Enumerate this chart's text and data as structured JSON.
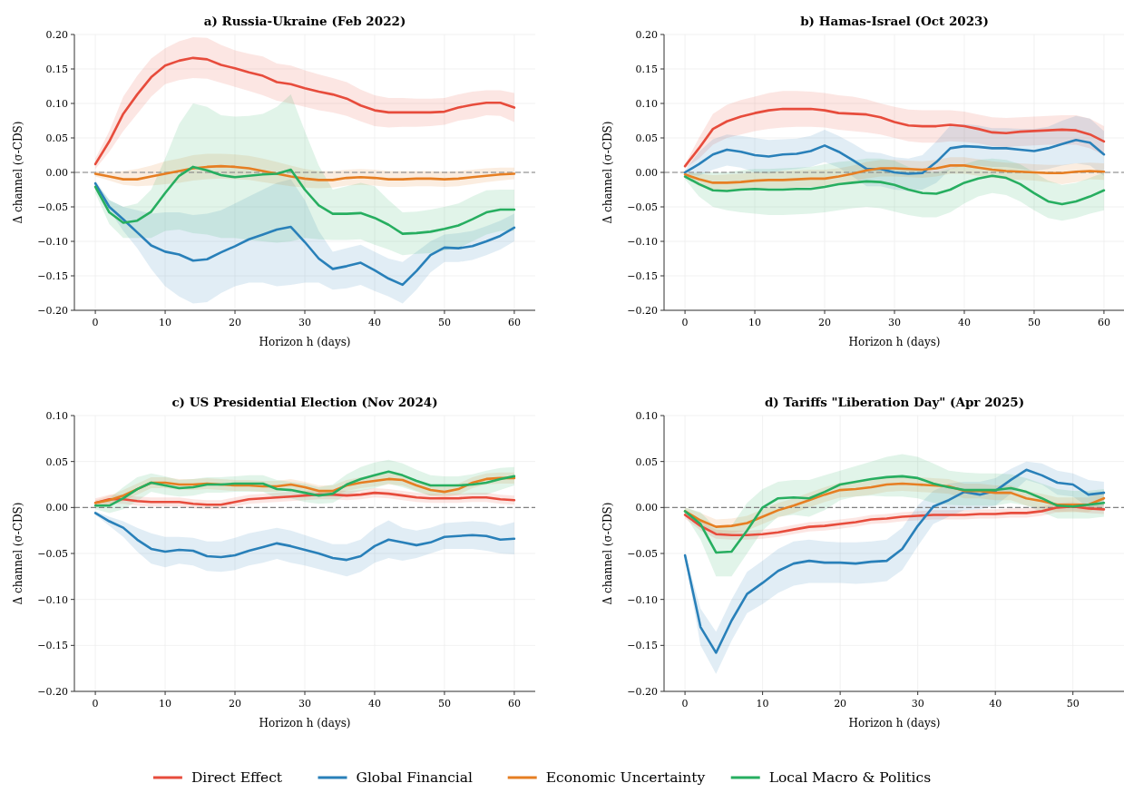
{
  "chart_data": [
    {
      "type": "line",
      "title": "a) Russia-Ukraine (Feb 2022)",
      "xlabel": "Horizon h (days)",
      "ylabel": "Δ channel (σ-CDS)",
      "xlim": [
        -3,
        63
      ],
      "xticks": [
        0,
        10,
        20,
        30,
        40,
        50,
        60
      ],
      "ylim": [
        -0.2,
        0.2
      ],
      "yticks": [
        {
          "value": -0.2,
          "label": "−0.20"
        },
        {
          "value": -0.15,
          "label": "−0.15"
        },
        {
          "value": -0.1,
          "label": "−0.10"
        },
        {
          "value": -0.05,
          "label": "−0.05"
        },
        {
          "value": 0,
          "label": "0.00"
        },
        {
          "value": 0.05,
          "label": "0.05"
        },
        {
          "value": 0.1,
          "label": "0.10"
        },
        {
          "value": 0.15,
          "label": "0.15"
        },
        {
          "value": 0.2,
          "label": "0.20"
        }
      ],
      "grid": true,
      "legend": "bottom",
      "ref_lines": [
        {
          "axis": "y",
          "value": 0,
          "color": "#808080",
          "line_style": "dashed"
        }
      ],
      "x": [
        0,
        2,
        4,
        6,
        8,
        10,
        12,
        14,
        16,
        18,
        20,
        22,
        24,
        26,
        28,
        30,
        32,
        34,
        36,
        38,
        40,
        42,
        44,
        46,
        48,
        50,
        52,
        54,
        56,
        58,
        60
      ],
      "series": [
        {
          "name": "Direct Effect",
          "color": "#e74c3c",
          "values": [
            0.012,
            0.045,
            0.085,
            0.113,
            0.138,
            0.155,
            0.162,
            0.166,
            0.164,
            0.156,
            0.151,
            0.145,
            0.14,
            0.131,
            0.128,
            0.122,
            0.117,
            0.113,
            0.107,
            0.097,
            0.09,
            0.087,
            0.087,
            0.087,
            0.087,
            0.088,
            0.094,
            0.098,
            0.101,
            0.101,
            0.094
          ],
          "upper": [
            0.02,
            0.06,
            0.11,
            0.14,
            0.165,
            0.18,
            0.19,
            0.196,
            0.195,
            0.185,
            0.177,
            0.172,
            0.168,
            0.158,
            0.155,
            0.148,
            0.142,
            0.137,
            0.131,
            0.12,
            0.112,
            0.108,
            0.108,
            0.107,
            0.107,
            0.108,
            0.113,
            0.117,
            0.119,
            0.119,
            0.115
          ],
          "lower": [
            0.005,
            0.03,
            0.06,
            0.085,
            0.11,
            0.128,
            0.134,
            0.137,
            0.136,
            0.13,
            0.124,
            0.118,
            0.112,
            0.104,
            0.1,
            0.095,
            0.09,
            0.087,
            0.082,
            0.074,
            0.067,
            0.065,
            0.066,
            0.066,
            0.067,
            0.069,
            0.075,
            0.078,
            0.083,
            0.082,
            0.073
          ]
        },
        {
          "name": "Global Financial",
          "color": "#2980b9",
          "values": [
            -0.016,
            -0.05,
            -0.068,
            -0.087,
            -0.106,
            -0.115,
            -0.119,
            -0.128,
            -0.126,
            -0.116,
            -0.107,
            -0.097,
            -0.09,
            -0.083,
            -0.079,
            -0.101,
            -0.125,
            -0.14,
            -0.136,
            -0.131,
            -0.142,
            -0.154,
            -0.163,
            -0.143,
            -0.12,
            -0.109,
            -0.11,
            -0.107,
            -0.1,
            -0.092,
            -0.08
          ],
          "upper": [
            -0.012,
            -0.04,
            -0.05,
            -0.055,
            -0.06,
            -0.058,
            -0.058,
            -0.062,
            -0.06,
            -0.055,
            -0.045,
            -0.035,
            -0.025,
            -0.015,
            -0.01,
            -0.04,
            -0.085,
            -0.115,
            -0.11,
            -0.105,
            -0.115,
            -0.125,
            -0.13,
            -0.115,
            -0.1,
            -0.09,
            -0.088,
            -0.085,
            -0.078,
            -0.07,
            -0.06
          ],
          "lower": [
            -0.02,
            -0.055,
            -0.085,
            -0.11,
            -0.14,
            -0.165,
            -0.18,
            -0.19,
            -0.188,
            -0.175,
            -0.165,
            -0.16,
            -0.16,
            -0.165,
            -0.163,
            -0.16,
            -0.16,
            -0.17,
            -0.168,
            -0.163,
            -0.172,
            -0.18,
            -0.19,
            -0.17,
            -0.145,
            -0.13,
            -0.13,
            -0.127,
            -0.12,
            -0.112,
            -0.1
          ]
        },
        {
          "name": "Economic Uncertainty",
          "color": "#e67e22",
          "values": [
            -0.002,
            -0.006,
            -0.01,
            -0.01,
            -0.006,
            -0.002,
            0.002,
            0.006,
            0.008,
            0.009,
            0.008,
            0.006,
            0.002,
            -0.002,
            -0.006,
            -0.009,
            -0.011,
            -0.011,
            -0.008,
            -0.007,
            -0.008,
            -0.01,
            -0.01,
            -0.009,
            -0.009,
            -0.01,
            -0.009,
            -0.007,
            -0.005,
            -0.003,
            -0.002
          ],
          "upper": [
            0.002,
            0.0,
            0.002,
            0.005,
            0.01,
            0.016,
            0.02,
            0.025,
            0.027,
            0.027,
            0.026,
            0.024,
            0.02,
            0.015,
            0.01,
            0.005,
            0.002,
            0.002,
            0.004,
            0.005,
            0.004,
            0.002,
            0.002,
            0.002,
            0.002,
            0.001,
            0.002,
            0.004,
            0.006,
            0.007,
            0.007
          ],
          "lower": [
            -0.006,
            -0.012,
            -0.018,
            -0.02,
            -0.019,
            -0.017,
            -0.015,
            -0.012,
            -0.01,
            -0.009,
            -0.01,
            -0.011,
            -0.014,
            -0.017,
            -0.02,
            -0.022,
            -0.023,
            -0.022,
            -0.019,
            -0.018,
            -0.019,
            -0.021,
            -0.021,
            -0.02,
            -0.02,
            -0.021,
            -0.02,
            -0.017,
            -0.014,
            -0.012,
            -0.01
          ]
        },
        {
          "name": "Local Macro & Politics",
          "color": "#27ae60",
          "values": [
            -0.021,
            -0.058,
            -0.073,
            -0.07,
            -0.057,
            -0.03,
            -0.005,
            0.008,
            0.003,
            -0.004,
            -0.007,
            -0.005,
            -0.003,
            -0.002,
            0.004,
            -0.025,
            -0.048,
            -0.06,
            -0.06,
            -0.059,
            -0.066,
            -0.076,
            -0.089,
            -0.088,
            -0.086,
            -0.082,
            -0.077,
            -0.068,
            -0.058,
            -0.054,
            -0.054
          ],
          "upper": [
            -0.015,
            -0.04,
            -0.05,
            -0.045,
            -0.025,
            0.02,
            0.07,
            0.1,
            0.095,
            0.083,
            0.081,
            0.082,
            0.085,
            0.095,
            0.113,
            0.06,
            0.01,
            -0.025,
            -0.02,
            -0.015,
            -0.02,
            -0.04,
            -0.058,
            -0.057,
            -0.054,
            -0.05,
            -0.045,
            -0.035,
            -0.026,
            -0.025,
            -0.025
          ],
          "lower": [
            -0.03,
            -0.075,
            -0.095,
            -0.095,
            -0.095,
            -0.085,
            -0.083,
            -0.088,
            -0.09,
            -0.095,
            -0.095,
            -0.098,
            -0.1,
            -0.102,
            -0.1,
            -0.095,
            -0.097,
            -0.098,
            -0.098,
            -0.097,
            -0.105,
            -0.112,
            -0.12,
            -0.118,
            -0.117,
            -0.113,
            -0.11,
            -0.1,
            -0.09,
            -0.085,
            -0.085
          ]
        }
      ]
    },
    {
      "type": "line",
      "title": "b) Hamas-Israel (Oct 2023)",
      "xlabel": "Horizon h (days)",
      "ylabel": "Δ channel (σ-CDS)",
      "xlim": [
        -3,
        63
      ],
      "xticks": [
        0,
        10,
        20,
        30,
        40,
        50,
        60
      ],
      "ylim": [
        -0.2,
        0.2
      ],
      "yticks": [
        {
          "value": -0.2,
          "label": "−0.20"
        },
        {
          "value": -0.15,
          "label": "−0.15"
        },
        {
          "value": -0.1,
          "label": "−0.10"
        },
        {
          "value": -0.05,
          "label": "−0.05"
        },
        {
          "value": 0,
          "label": "0.00"
        },
        {
          "value": 0.05,
          "label": "0.05"
        },
        {
          "value": 0.1,
          "label": "0.10"
        },
        {
          "value": 0.15,
          "label": "0.15"
        },
        {
          "value": 0.2,
          "label": "0.20"
        }
      ],
      "grid": true,
      "ref_lines": [
        {
          "axis": "y",
          "value": 0,
          "color": "#808080",
          "line_style": "dashed"
        }
      ],
      "x": [
        0,
        2,
        4,
        6,
        8,
        10,
        12,
        14,
        16,
        18,
        20,
        22,
        24,
        26,
        28,
        30,
        32,
        34,
        36,
        38,
        40,
        42,
        44,
        46,
        48,
        50,
        52,
        54,
        56,
        58,
        60
      ],
      "series": [
        {
          "color": "#e74c3c",
          "values": [
            0.009,
            0.035,
            0.063,
            0.074,
            0.081,
            0.086,
            0.09,
            0.092,
            0.092,
            0.092,
            0.09,
            0.086,
            0.085,
            0.084,
            0.08,
            0.073,
            0.068,
            0.067,
            0.067,
            0.069,
            0.067,
            0.063,
            0.058,
            0.057,
            0.059,
            0.06,
            0.061,
            0.062,
            0.061,
            0.055,
            0.045
          ],
          "upper": [
            0.012,
            0.05,
            0.085,
            0.098,
            0.105,
            0.11,
            0.115,
            0.118,
            0.118,
            0.117,
            0.115,
            0.112,
            0.11,
            0.106,
            0.1,
            0.095,
            0.091,
            0.09,
            0.09,
            0.09,
            0.088,
            0.084,
            0.08,
            0.079,
            0.08,
            0.081,
            0.082,
            0.083,
            0.083,
            0.078,
            0.067
          ],
          "lower": [
            0.006,
            0.02,
            0.04,
            0.05,
            0.055,
            0.06,
            0.063,
            0.065,
            0.066,
            0.066,
            0.065,
            0.062,
            0.06,
            0.058,
            0.055,
            0.05,
            0.045,
            0.043,
            0.043,
            0.045,
            0.044,
            0.042,
            0.038,
            0.037,
            0.038,
            0.039,
            0.04,
            0.04,
            0.04,
            0.035,
            0.025
          ]
        },
        {
          "color": "#2980b9",
          "values": [
            0.0,
            0.012,
            0.026,
            0.033,
            0.03,
            0.025,
            0.023,
            0.026,
            0.027,
            0.031,
            0.039,
            0.03,
            0.018,
            0.005,
            0.005,
            0.0,
            -0.002,
            -0.001,
            0.015,
            0.035,
            0.038,
            0.037,
            0.035,
            0.035,
            0.033,
            0.031,
            0.035,
            0.041,
            0.047,
            0.043,
            0.026
          ],
          "upper": [
            0.003,
            0.03,
            0.048,
            0.055,
            0.053,
            0.05,
            0.047,
            0.048,
            0.049,
            0.053,
            0.062,
            0.053,
            0.042,
            0.03,
            0.028,
            0.022,
            0.02,
            0.025,
            0.045,
            0.068,
            0.07,
            0.068,
            0.064,
            0.064,
            0.063,
            0.063,
            0.066,
            0.075,
            0.082,
            0.078,
            0.06
          ],
          "lower": [
            -0.003,
            -0.005,
            0.004,
            0.01,
            0.007,
            0.0,
            -0.002,
            0.003,
            0.005,
            0.008,
            0.015,
            0.007,
            -0.006,
            -0.02,
            -0.02,
            -0.025,
            -0.027,
            -0.025,
            -0.015,
            0.005,
            0.01,
            0.01,
            0.008,
            0.008,
            0.005,
            0.002,
            0.005,
            0.01,
            0.013,
            0.01,
            -0.005
          ]
        },
        {
          "color": "#e67e22",
          "values": [
            -0.003,
            -0.01,
            -0.015,
            -0.015,
            -0.014,
            -0.012,
            -0.011,
            -0.011,
            -0.01,
            -0.009,
            -0.009,
            -0.006,
            -0.002,
            0.003,
            0.006,
            0.006,
            0.005,
            0.004,
            0.006,
            0.01,
            0.01,
            0.007,
            0.004,
            0.002,
            0.001,
            0.0,
            -0.001,
            -0.001,
            0.001,
            0.002,
            0.001
          ],
          "upper": [
            0.0,
            -0.002,
            -0.004,
            -0.003,
            -0.002,
            0.0,
            0.001,
            0.002,
            0.003,
            0.004,
            0.004,
            0.006,
            0.01,
            0.015,
            0.018,
            0.018,
            0.017,
            0.016,
            0.018,
            0.022,
            0.022,
            0.019,
            0.016,
            0.014,
            0.013,
            0.012,
            0.011,
            0.011,
            0.013,
            0.014,
            0.013
          ],
          "lower": [
            -0.006,
            -0.02,
            -0.026,
            -0.027,
            -0.026,
            -0.024,
            -0.023,
            -0.023,
            -0.022,
            -0.021,
            -0.021,
            -0.018,
            -0.014,
            -0.009,
            -0.006,
            -0.006,
            -0.007,
            -0.008,
            -0.006,
            -0.002,
            -0.002,
            -0.005,
            -0.008,
            -0.01,
            -0.011,
            -0.012,
            -0.014,
            -0.017,
            -0.014,
            -0.01,
            -0.011
          ]
        },
        {
          "color": "#27ae60",
          "values": [
            -0.006,
            -0.017,
            -0.026,
            -0.027,
            -0.025,
            -0.024,
            -0.025,
            -0.025,
            -0.024,
            -0.024,
            -0.021,
            -0.017,
            -0.015,
            -0.013,
            -0.014,
            -0.018,
            -0.025,
            -0.03,
            -0.031,
            -0.025,
            -0.015,
            -0.009,
            -0.005,
            -0.008,
            -0.017,
            -0.03,
            -0.042,
            -0.046,
            -0.042,
            -0.035,
            -0.026
          ],
          "upper": [
            -0.002,
            0.0,
            0.0,
            0.0,
            0.003,
            0.005,
            0.005,
            0.006,
            0.007,
            0.008,
            0.012,
            0.015,
            0.017,
            0.02,
            0.02,
            0.017,
            0.008,
            0.002,
            0.0,
            0.005,
            0.012,
            0.018,
            0.02,
            0.018,
            0.012,
            0.0,
            -0.012,
            -0.018,
            -0.015,
            -0.008,
            0.0
          ],
          "lower": [
            -0.01,
            -0.035,
            -0.05,
            -0.055,
            -0.058,
            -0.06,
            -0.062,
            -0.062,
            -0.061,
            -0.06,
            -0.058,
            -0.055,
            -0.052,
            -0.05,
            -0.052,
            -0.057,
            -0.062,
            -0.065,
            -0.065,
            -0.058,
            -0.045,
            -0.035,
            -0.03,
            -0.033,
            -0.042,
            -0.055,
            -0.066,
            -0.07,
            -0.066,
            -0.06,
            -0.055
          ]
        }
      ]
    },
    {
      "type": "line",
      "title": "c) US Presidential Election (Nov 2024)",
      "xlabel": "Horizon h (days)",
      "ylabel": "Δ channel (σ-CDS)",
      "xlim": [
        -3,
        63
      ],
      "xticks": [
        0,
        10,
        20,
        30,
        40,
        50,
        60
      ],
      "ylim": [
        -0.2,
        0.1
      ],
      "yticks": [
        {
          "value": -0.2,
          "label": "−0.20"
        },
        {
          "value": -0.15,
          "label": "−0.15"
        },
        {
          "value": -0.1,
          "label": "−0.10"
        },
        {
          "value": -0.05,
          "label": "−0.05"
        },
        {
          "value": 0,
          "label": "0.00"
        },
        {
          "value": 0.05,
          "label": "0.05"
        },
        {
          "value": 0.1,
          "label": "0.10"
        }
      ],
      "grid": true,
      "ref_lines": [
        {
          "axis": "y",
          "value": 0,
          "color": "#808080",
          "line_style": "dashed"
        }
      ],
      "x": [
        0,
        2,
        4,
        6,
        8,
        10,
        12,
        14,
        16,
        18,
        20,
        22,
        24,
        26,
        28,
        30,
        32,
        34,
        36,
        38,
        40,
        42,
        44,
        46,
        48,
        50,
        52,
        54,
        56,
        58,
        60
      ],
      "series": [
        {
          "color": "#e74c3c",
          "values": [
            0.005,
            0.009,
            0.009,
            0.007,
            0.006,
            0.006,
            0.006,
            0.004,
            0.003,
            0.003,
            0.006,
            0.009,
            0.01,
            0.011,
            0.012,
            0.013,
            0.014,
            0.014,
            0.013,
            0.014,
            0.016,
            0.015,
            0.013,
            0.011,
            0.01,
            0.01,
            0.01,
            0.011,
            0.011,
            0.009,
            0.008
          ],
          "upper": [
            0.01,
            0.014,
            0.014,
            0.012,
            0.011,
            0.011,
            0.011,
            0.009,
            0.008,
            0.008,
            0.011,
            0.014,
            0.015,
            0.016,
            0.017,
            0.018,
            0.019,
            0.019,
            0.018,
            0.019,
            0.021,
            0.02,
            0.018,
            0.016,
            0.015,
            0.015,
            0.015,
            0.016,
            0.016,
            0.014,
            0.013
          ],
          "lower": [
            0.0,
            0.004,
            0.004,
            0.002,
            0.001,
            0.001,
            0.001,
            -0.001,
            -0.002,
            -0.002,
            0.001,
            0.004,
            0.005,
            0.006,
            0.007,
            0.008,
            0.009,
            0.009,
            0.008,
            0.009,
            0.011,
            0.01,
            0.008,
            0.006,
            0.005,
            0.005,
            0.005,
            0.006,
            0.006,
            0.004,
            0.003
          ]
        },
        {
          "color": "#2980b9",
          "values": [
            -0.006,
            -0.015,
            -0.022,
            -0.035,
            -0.045,
            -0.048,
            -0.046,
            -0.047,
            -0.053,
            -0.054,
            -0.052,
            -0.047,
            -0.043,
            -0.039,
            -0.042,
            -0.046,
            -0.05,
            -0.055,
            -0.057,
            -0.053,
            -0.042,
            -0.035,
            -0.038,
            -0.041,
            -0.038,
            -0.032,
            -0.031,
            -0.03,
            -0.031,
            -0.035,
            -0.034
          ],
          "upper": [
            -0.004,
            -0.01,
            -0.015,
            -0.022,
            -0.028,
            -0.032,
            -0.032,
            -0.033,
            -0.037,
            -0.037,
            -0.033,
            -0.028,
            -0.025,
            -0.022,
            -0.025,
            -0.03,
            -0.035,
            -0.04,
            -0.04,
            -0.035,
            -0.022,
            -0.014,
            -0.022,
            -0.025,
            -0.022,
            -0.017,
            -0.016,
            -0.015,
            -0.016,
            -0.02,
            -0.016
          ],
          "lower": [
            -0.008,
            -0.02,
            -0.032,
            -0.048,
            -0.061,
            -0.065,
            -0.061,
            -0.063,
            -0.069,
            -0.07,
            -0.068,
            -0.063,
            -0.06,
            -0.056,
            -0.06,
            -0.063,
            -0.067,
            -0.071,
            -0.075,
            -0.07,
            -0.06,
            -0.055,
            -0.058,
            -0.055,
            -0.05,
            -0.045,
            -0.045,
            -0.045,
            -0.047,
            -0.05,
            -0.051
          ]
        },
        {
          "color": "#e67e22",
          "values": [
            0.005,
            0.008,
            0.013,
            0.02,
            0.027,
            0.027,
            0.025,
            0.025,
            0.026,
            0.025,
            0.024,
            0.024,
            0.023,
            0.023,
            0.025,
            0.022,
            0.018,
            0.018,
            0.024,
            0.027,
            0.029,
            0.031,
            0.03,
            0.024,
            0.019,
            0.017,
            0.02,
            0.027,
            0.031,
            0.032,
            0.032
          ],
          "upper": [
            0.008,
            0.013,
            0.019,
            0.026,
            0.033,
            0.033,
            0.031,
            0.031,
            0.032,
            0.031,
            0.03,
            0.03,
            0.029,
            0.029,
            0.031,
            0.028,
            0.024,
            0.024,
            0.03,
            0.033,
            0.035,
            0.037,
            0.036,
            0.03,
            0.025,
            0.023,
            0.026,
            0.033,
            0.037,
            0.038,
            0.038
          ],
          "lower": [
            0.002,
            0.003,
            0.007,
            0.014,
            0.021,
            0.021,
            0.019,
            0.019,
            0.02,
            0.019,
            0.018,
            0.018,
            0.017,
            0.017,
            0.019,
            0.016,
            0.012,
            0.012,
            0.018,
            0.021,
            0.023,
            0.025,
            0.024,
            0.018,
            0.013,
            0.011,
            0.014,
            0.021,
            0.025,
            0.026,
            0.026
          ]
        },
        {
          "color": "#27ae60",
          "values": [
            0.002,
            0.002,
            0.01,
            0.02,
            0.027,
            0.024,
            0.021,
            0.022,
            0.025,
            0.025,
            0.026,
            0.026,
            0.026,
            0.02,
            0.019,
            0.016,
            0.013,
            0.015,
            0.025,
            0.031,
            0.035,
            0.039,
            0.035,
            0.029,
            0.024,
            0.024,
            0.024,
            0.025,
            0.027,
            0.031,
            0.034
          ],
          "upper": [
            0.006,
            0.01,
            0.022,
            0.033,
            0.037,
            0.034,
            0.03,
            0.031,
            0.033,
            0.033,
            0.034,
            0.035,
            0.035,
            0.03,
            0.028,
            0.026,
            0.022,
            0.025,
            0.036,
            0.044,
            0.049,
            0.052,
            0.048,
            0.041,
            0.035,
            0.034,
            0.034,
            0.036,
            0.04,
            0.043,
            0.044
          ],
          "lower": [
            -0.002,
            -0.006,
            -0.002,
            0.007,
            0.017,
            0.014,
            0.012,
            0.013,
            0.016,
            0.016,
            0.017,
            0.017,
            0.017,
            0.01,
            0.01,
            0.006,
            0.004,
            0.005,
            0.014,
            0.018,
            0.021,
            0.026,
            0.022,
            0.017,
            0.013,
            0.014,
            0.014,
            0.014,
            0.014,
            0.019,
            0.024
          ]
        }
      ]
    },
    {
      "type": "line",
      "title": "d) Tariffs \"Liberation Day\" (Apr 2025)",
      "xlabel": "Horizon h (days)",
      "ylabel": "Δ channel (σ-CDS)",
      "xlim": [
        -2.7,
        56.7
      ],
      "xticks": [
        0,
        10,
        20,
        30,
        40,
        50
      ],
      "ylim": [
        -0.2,
        0.1
      ],
      "yticks": [
        {
          "value": -0.2,
          "label": "−0.20"
        },
        {
          "value": -0.15,
          "label": "−0.15"
        },
        {
          "value": -0.1,
          "label": "−0.10"
        },
        {
          "value": -0.05,
          "label": "−0.05"
        },
        {
          "value": 0,
          "label": "0.00"
        },
        {
          "value": 0.05,
          "label": "0.05"
        },
        {
          "value": 0.1,
          "label": "0.10"
        }
      ],
      "grid": true,
      "ref_lines": [
        {
          "axis": "y",
          "value": 0,
          "color": "#808080",
          "line_style": "dashed"
        }
      ],
      "x": [
        0,
        2,
        4,
        6,
        8,
        10,
        12,
        14,
        16,
        18,
        20,
        22,
        24,
        26,
        28,
        30,
        32,
        34,
        36,
        38,
        40,
        42,
        44,
        46,
        48,
        50,
        52,
        54
      ],
      "series": [
        {
          "color": "#e74c3c",
          "values": [
            -0.008,
            -0.02,
            -0.029,
            -0.03,
            -0.03,
            -0.029,
            -0.027,
            -0.024,
            -0.021,
            -0.02,
            -0.018,
            -0.016,
            -0.013,
            -0.012,
            -0.01,
            -0.009,
            -0.008,
            -0.008,
            -0.008,
            -0.007,
            -0.007,
            -0.006,
            -0.006,
            -0.004,
            0.0,
            0.001,
            -0.001,
            -0.002
          ],
          "upper": [
            -0.004,
            -0.015,
            -0.024,
            -0.025,
            -0.025,
            -0.024,
            -0.022,
            -0.019,
            -0.016,
            -0.015,
            -0.013,
            -0.011,
            -0.008,
            -0.007,
            -0.005,
            -0.004,
            -0.003,
            -0.003,
            -0.003,
            -0.002,
            -0.002,
            -0.001,
            -0.001,
            0.001,
            0.005,
            0.006,
            0.004,
            0.003
          ],
          "lower": [
            -0.012,
            -0.025,
            -0.034,
            -0.035,
            -0.035,
            -0.034,
            -0.032,
            -0.029,
            -0.026,
            -0.025,
            -0.023,
            -0.021,
            -0.018,
            -0.017,
            -0.015,
            -0.014,
            -0.013,
            -0.013,
            -0.013,
            -0.012,
            -0.012,
            -0.011,
            -0.011,
            -0.009,
            -0.005,
            -0.004,
            -0.006,
            -0.007
          ]
        },
        {
          "color": "#2980b9",
          "values": [
            -0.052,
            -0.13,
            -0.158,
            -0.123,
            -0.094,
            -0.082,
            -0.069,
            -0.061,
            -0.058,
            -0.06,
            -0.06,
            -0.061,
            -0.059,
            -0.058,
            -0.045,
            -0.02,
            0.001,
            0.008,
            0.017,
            0.014,
            0.018,
            0.03,
            0.041,
            0.035,
            0.027,
            0.025,
            0.014,
            0.016
          ],
          "upper": [
            -0.05,
            -0.11,
            -0.135,
            -0.1,
            -0.07,
            -0.058,
            -0.045,
            -0.037,
            -0.035,
            -0.037,
            -0.038,
            -0.038,
            -0.037,
            -0.035,
            -0.022,
            0.002,
            0.018,
            0.026,
            0.028,
            0.028,
            0.032,
            0.042,
            0.05,
            0.048,
            0.04,
            0.037,
            0.03,
            0.028
          ],
          "lower": [
            -0.054,
            -0.15,
            -0.181,
            -0.145,
            -0.115,
            -0.105,
            -0.093,
            -0.085,
            -0.082,
            -0.082,
            -0.082,
            -0.083,
            -0.082,
            -0.08,
            -0.068,
            -0.042,
            -0.018,
            -0.01,
            -0.003,
            -0.002,
            0.002,
            0.015,
            0.03,
            0.025,
            0.014,
            0.012,
            0.0,
            0.002
          ]
        },
        {
          "color": "#e67e22",
          "values": [
            -0.004,
            -0.014,
            -0.021,
            -0.02,
            -0.017,
            -0.01,
            -0.003,
            0.002,
            0.008,
            0.014,
            0.019,
            0.02,
            0.022,
            0.025,
            0.026,
            0.025,
            0.024,
            0.023,
            0.018,
            0.018,
            0.016,
            0.016,
            0.01,
            0.007,
            0.003,
            0.003,
            0.003,
            0.01
          ],
          "upper": [
            0.0,
            -0.006,
            -0.013,
            -0.012,
            -0.009,
            -0.002,
            0.005,
            0.01,
            0.016,
            0.022,
            0.027,
            0.028,
            0.03,
            0.033,
            0.034,
            0.033,
            0.032,
            0.031,
            0.026,
            0.026,
            0.024,
            0.024,
            0.018,
            0.015,
            0.011,
            0.011,
            0.011,
            0.018
          ],
          "lower": [
            -0.008,
            -0.022,
            -0.029,
            -0.028,
            -0.025,
            -0.018,
            -0.011,
            -0.006,
            0.0,
            0.006,
            0.011,
            0.012,
            0.014,
            0.017,
            0.018,
            0.017,
            0.016,
            0.015,
            0.01,
            0.01,
            0.008,
            0.008,
            0.002,
            -0.001,
            -0.005,
            -0.005,
            -0.005,
            0.002
          ]
        },
        {
          "color": "#27ae60",
          "values": [
            -0.004,
            -0.018,
            -0.049,
            -0.048,
            -0.025,
            0.0,
            0.01,
            0.011,
            0.01,
            0.017,
            0.025,
            0.028,
            0.031,
            0.033,
            0.034,
            0.032,
            0.026,
            0.022,
            0.019,
            0.019,
            0.019,
            0.021,
            0.017,
            0.01,
            0.002,
            0.001,
            0.003,
            0.005
          ],
          "upper": [
            0.0,
            -0.005,
            -0.022,
            -0.02,
            0.005,
            0.02,
            0.028,
            0.03,
            0.03,
            0.035,
            0.04,
            0.045,
            0.05,
            0.055,
            0.058,
            0.055,
            0.048,
            0.04,
            0.038,
            0.037,
            0.037,
            0.036,
            0.032,
            0.026,
            0.02,
            0.018,
            0.018,
            0.02
          ],
          "lower": [
            -0.008,
            -0.035,
            -0.075,
            -0.075,
            -0.05,
            -0.025,
            -0.01,
            -0.008,
            -0.01,
            -0.003,
            0.008,
            0.012,
            0.013,
            0.012,
            0.012,
            0.01,
            0.005,
            0.003,
            0.002,
            0.002,
            0.002,
            0.005,
            0.002,
            -0.005,
            -0.012,
            -0.012,
            -0.012,
            -0.01
          ]
        }
      ]
    }
  ]
}
